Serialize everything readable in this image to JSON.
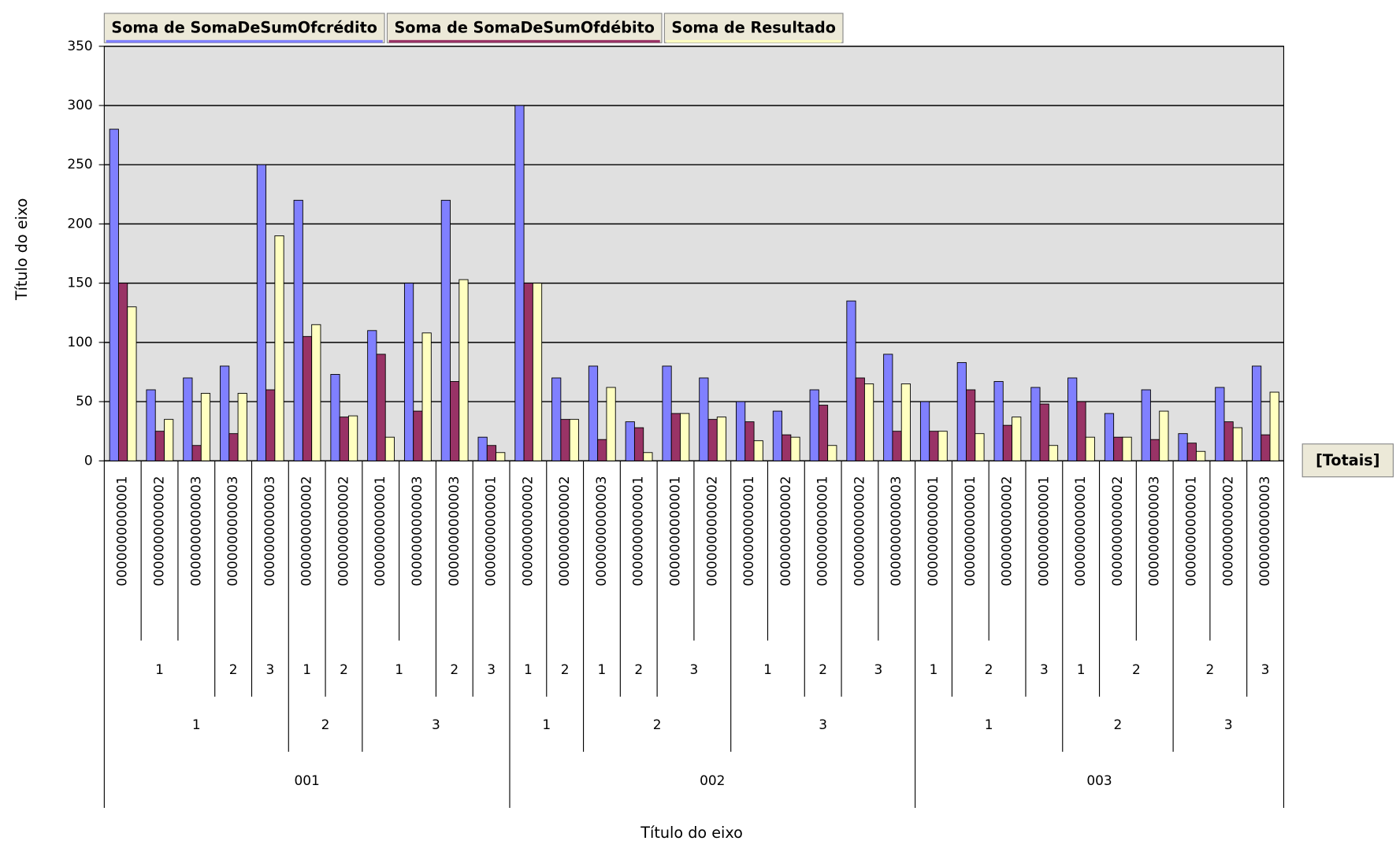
{
  "chart_data": {
    "type": "bar",
    "x_label": "Título do eixo",
    "y_label": "Título do eixo",
    "totals_label": "[Totais]",
    "ylim": [
      0,
      350
    ],
    "yticks": [
      0,
      50,
      100,
      150,
      200,
      250,
      300,
      350
    ],
    "grid": true,
    "categories": [
      [
        "001",
        "1",
        "1",
        "0000000000001"
      ],
      [
        "001",
        "1",
        "1",
        "0000000000002"
      ],
      [
        "001",
        "1",
        "1",
        "0000000000003"
      ],
      [
        "001",
        "1",
        "2",
        "0000000000003"
      ],
      [
        "001",
        "1",
        "3",
        "0000000000003"
      ],
      [
        "001",
        "2",
        "1",
        "0000000000002"
      ],
      [
        "001",
        "2",
        "2",
        "0000000000002"
      ],
      [
        "001",
        "3",
        "1",
        "0000000000001"
      ],
      [
        "001",
        "3",
        "1",
        "0000000000003"
      ],
      [
        "001",
        "3",
        "2",
        "0000000000003"
      ],
      [
        "001",
        "3",
        "3",
        "0000000000001"
      ],
      [
        "002",
        "1",
        "1",
        "0000000000002"
      ],
      [
        "002",
        "1",
        "2",
        "0000000000002"
      ],
      [
        "002",
        "2",
        "1",
        "0000000000003"
      ],
      [
        "002",
        "2",
        "2",
        "0000000000001"
      ],
      [
        "002",
        "2",
        "3",
        "0000000000001"
      ],
      [
        "002",
        "2",
        "3",
        "0000000000002"
      ],
      [
        "002",
        "3",
        "1",
        "0000000000001"
      ],
      [
        "002",
        "3",
        "1",
        "0000000000002"
      ],
      [
        "002",
        "3",
        "2",
        "0000000000001"
      ],
      [
        "002",
        "3",
        "3",
        "0000000000002"
      ],
      [
        "002",
        "3",
        "3",
        "0000000000003"
      ],
      [
        "003",
        "1",
        "1",
        "0000000000001"
      ],
      [
        "003",
        "1",
        "2",
        "0000000000001"
      ],
      [
        "003",
        "1",
        "2",
        "0000000000002"
      ],
      [
        "003",
        "1",
        "3",
        "0000000000001"
      ],
      [
        "003",
        "2",
        "1",
        "0000000000001"
      ],
      [
        "003",
        "2",
        "2",
        "0000000000002"
      ],
      [
        "003",
        "2",
        "2",
        "0000000000003"
      ],
      [
        "003",
        "3",
        "2",
        "0000000000001"
      ],
      [
        "003",
        "3",
        "2",
        "0000000000002"
      ],
      [
        "003",
        "3",
        "3",
        "0000000000003"
      ]
    ],
    "series": [
      {
        "name": "Soma de SomaDeSumOfcrédito",
        "color": "#8080ff",
        "values": [
          280,
          60,
          70,
          80,
          250,
          220,
          73,
          110,
          150,
          220,
          20,
          300,
          70,
          80,
          33,
          80,
          70,
          50,
          42,
          60,
          135,
          90,
          50,
          83,
          67,
          62,
          70,
          40,
          60,
          23,
          62,
          80
        ]
      },
      {
        "name": "Soma de SomaDeSumOfdébito",
        "color": "#993366",
        "values": [
          150,
          25,
          13,
          23,
          60,
          105,
          37,
          90,
          42,
          67,
          13,
          150,
          35,
          18,
          28,
          40,
          35,
          33,
          22,
          47,
          70,
          25,
          25,
          60,
          30,
          48,
          50,
          20,
          18,
          15,
          33,
          22
        ]
      },
      {
        "name": "Soma de Resultado",
        "color": "#ffffc0",
        "values": [
          130,
          35,
          57,
          57,
          190,
          115,
          38,
          20,
          108,
          153,
          7,
          150,
          35,
          62,
          7,
          40,
          37,
          17,
          20,
          13,
          65,
          65,
          25,
          23,
          37,
          13,
          20,
          20,
          42,
          8,
          28,
          58
        ]
      }
    ]
  }
}
